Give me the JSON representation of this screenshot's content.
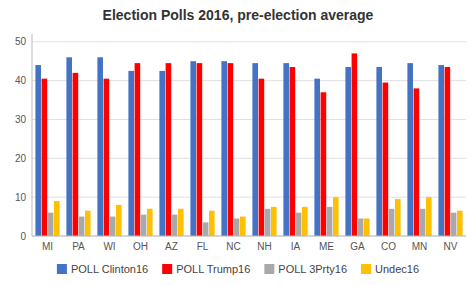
{
  "chart_data": {
    "type": "bar",
    "title": "Election Polls 2016, pre-election average",
    "categories": [
      "MI",
      "PA",
      "WI",
      "OH",
      "AZ",
      "FL",
      "NC",
      "NH",
      "IA",
      "ME",
      "GA",
      "CO",
      "MN",
      "NV"
    ],
    "series": [
      {
        "name": "POLL Clinton16",
        "color": "#4472C4",
        "values": [
          44,
          46,
          46,
          42.5,
          42.5,
          45,
          45,
          44.5,
          44.5,
          40.5,
          43.5,
          43.5,
          44.5,
          44
        ]
      },
      {
        "name": "POLL Trump16",
        "color": "#FF0000",
        "values": [
          40.5,
          42,
          40.5,
          44.5,
          44.5,
          44.5,
          44.5,
          40.5,
          43.5,
          37,
          47,
          39.5,
          38,
          43.5
        ]
      },
      {
        "name": "POLL 3Prty16",
        "color": "#A9A9A9",
        "values": [
          6,
          5,
          5,
          5.5,
          5.5,
          3.5,
          4.5,
          7,
          6,
          7.5,
          4.5,
          7,
          7,
          6
        ]
      },
      {
        "name": "Undec16",
        "color": "#FFC000",
        "values": [
          9,
          6.5,
          8,
          7,
          7,
          6.5,
          5,
          7.5,
          7.5,
          10,
          4.5,
          9.5,
          10,
          6.5
        ]
      }
    ],
    "ylim": [
      0,
      52
    ],
    "yticks": [
      0,
      10,
      20,
      30,
      40,
      50
    ],
    "grid": true,
    "legend": "bottom"
  }
}
